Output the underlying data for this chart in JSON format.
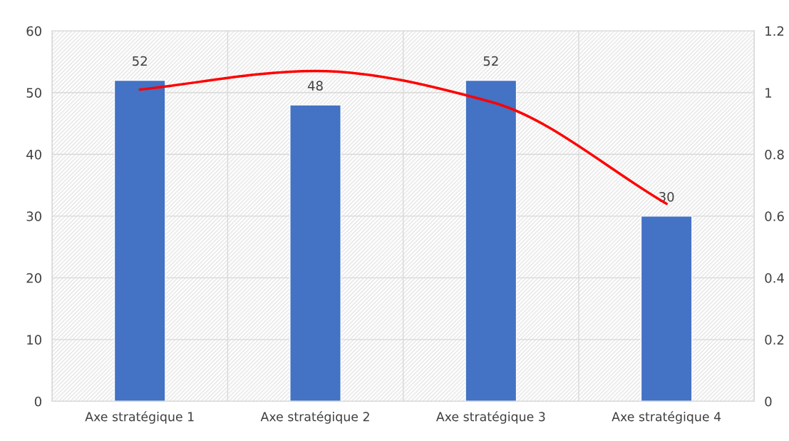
{
  "chart_data": {
    "type": "bar",
    "categories": [
      "Axe stratégique 1",
      "Axe stratégique 2",
      "Axe stratégique 3",
      "Axe stratégique 4"
    ],
    "series": [
      {
        "color": "#4472c4",
        "values": [
          52,
          48,
          52,
          30
        ],
        "value_labels": [
          "52",
          "48",
          "52",
          "30"
        ]
      },
      {
        "type": "line",
        "axis": "y2",
        "color": "#ff0000",
        "values": [
          1.01,
          1.07,
          0.97,
          0.64
        ]
      }
    ],
    "ylim": [
      0,
      60
    ],
    "yticks": [
      0,
      10,
      20,
      30,
      40,
      50,
      60
    ],
    "y2lim": [
      0,
      1.2
    ],
    "y2ticks": [
      0,
      0.2,
      0.4,
      0.6,
      0.8,
      1,
      1.2
    ],
    "grid": true,
    "marker": "none",
    "line_style": "solid"
  }
}
